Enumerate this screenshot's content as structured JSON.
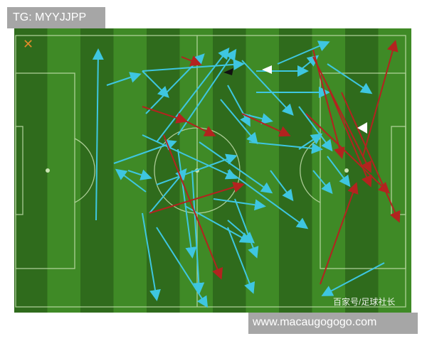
{
  "top_tag": {
    "text": "TG: MYYJJPP"
  },
  "bottom_tag": {
    "text": "www.macaugogogo.com"
  },
  "watermark": {
    "text": "百家号/足球社长"
  },
  "colors": {
    "pitch_dark": "#2f6b1c",
    "pitch_light": "#3f8a26",
    "line": "#c9e3b3",
    "pass_success": "#3ec6e0",
    "pass_fail": "#b3231f",
    "tag_bg": "#a6a6a6"
  }
}
